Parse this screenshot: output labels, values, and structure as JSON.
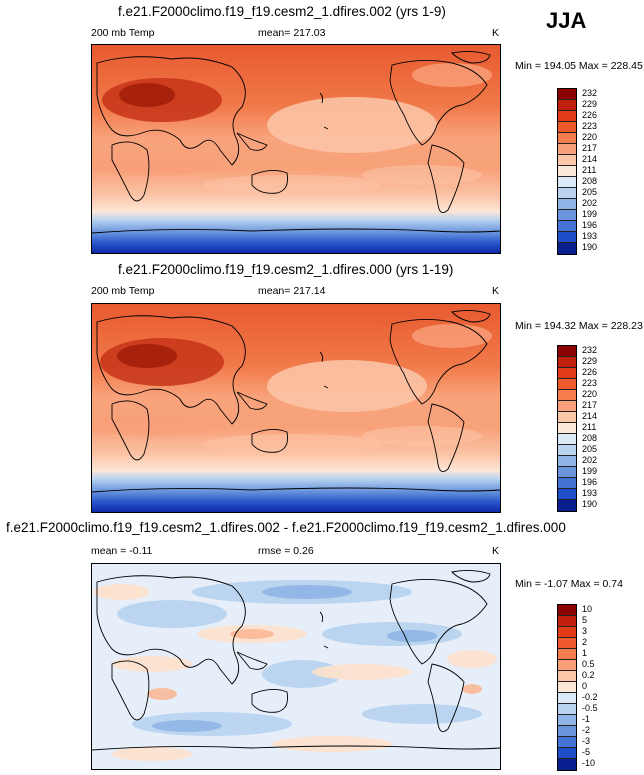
{
  "season": "JJA",
  "panels": [
    {
      "title": "f.e21.F2000climo.f19_f19.cesm2_1.dfires.002 (yrs 1-9)",
      "variable": "200 mb Temp",
      "stat_left": "mean= 217.03",
      "stat_mid": "",
      "units": "K",
      "minmax": "Min = 194.05 Max = 228.45"
    },
    {
      "title": "f.e21.F2000climo.f19_f19.cesm2_1.dfires.000 (yrs 1-19)",
      "variable": "200 mb Temp",
      "stat_left": "mean= 217.14",
      "stat_mid": "",
      "units": "K",
      "minmax": "Min = 194.32 Max = 228.23"
    },
    {
      "title": "f.e21.F2000climo.f19_f19.cesm2_1.dfires.002 - f.e21.F2000climo.f19_f19.cesm2_1.dfires.000",
      "variable": "",
      "stat_left": "mean =  -0.11",
      "stat_mid": "rmse =   0.26",
      "units": "K",
      "minmax": "Min =  -1.07 Max =   0.74"
    }
  ],
  "chart_data": [
    {
      "type": "heatmap",
      "title": "f.e21.F2000climo.f19_f19.cesm2_1.dfires.002 (yrs 1-9)",
      "variable": "200 mb Temp",
      "units": "K",
      "mean": 217.03,
      "min": 194.05,
      "max": 228.45,
      "colorbar_levels": [
        232,
        229,
        226,
        223,
        220,
        217,
        214,
        211,
        208,
        205,
        202,
        199,
        196,
        193,
        190
      ],
      "colorbar_colors": [
        "#8b0000",
        "#c1200d",
        "#e03a17",
        "#ee5a2c",
        "#f67c4d",
        "#f9a07a",
        "#fcc6a8",
        "#fde8d8",
        "#dce9f6",
        "#b9d3f0",
        "#8fb5e6",
        "#6a95dc",
        "#4373d4",
        "#1e4ec8",
        "#0a1f8f"
      ]
    },
    {
      "type": "heatmap",
      "title": "f.e21.F2000climo.f19_f19.cesm2_1.dfires.000 (yrs 1-19)",
      "variable": "200 mb Temp",
      "units": "K",
      "mean": 217.14,
      "min": 194.32,
      "max": 228.23,
      "colorbar_levels": [
        232,
        229,
        226,
        223,
        220,
        217,
        214,
        211,
        208,
        205,
        202,
        199,
        196,
        193,
        190
      ],
      "colorbar_colors": [
        "#8b0000",
        "#c1200d",
        "#e03a17",
        "#ee5a2c",
        "#f67c4d",
        "#f9a07a",
        "#fcc6a8",
        "#fde8d8",
        "#dce9f6",
        "#b9d3f0",
        "#8fb5e6",
        "#6a95dc",
        "#4373d4",
        "#1e4ec8",
        "#0a1f8f"
      ]
    },
    {
      "type": "heatmap",
      "title": "f.e21.F2000climo.f19_f19.cesm2_1.dfires.002 - f.e21.F2000climo.f19_f19.cesm2_1.dfires.000",
      "units": "K",
      "mean": -0.11,
      "rmse": 0.26,
      "min": -1.07,
      "max": 0.74,
      "colorbar_levels": [
        "10",
        "5",
        "3",
        "2",
        "1",
        "0.5",
        "0.2",
        "0",
        "-0.2",
        "-0.5",
        "-1",
        "-2",
        "-3",
        "-5",
        "-10"
      ],
      "colorbar_colors": [
        "#8b0000",
        "#c1200d",
        "#e03a17",
        "#ee5a2c",
        "#f67c4d",
        "#f9a07a",
        "#fcc6a8",
        "#fde8d8",
        "#dce9f6",
        "#b9d3f0",
        "#8fb5e6",
        "#6a95dc",
        "#4373d4",
        "#1e4ec8",
        "#0a1f8f"
      ]
    }
  ]
}
